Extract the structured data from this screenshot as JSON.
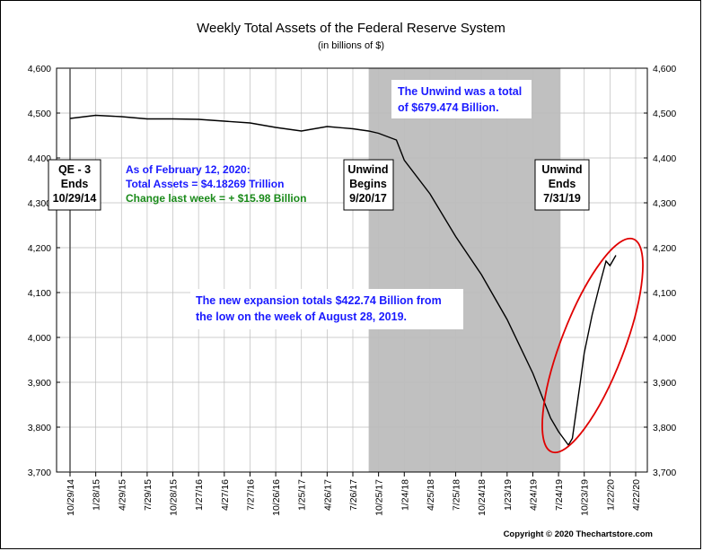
{
  "chart_data": {
    "type": "line",
    "title": "Weekly Total Assets of the Federal Reserve System",
    "subtitle": "(in billions of $)",
    "ylim": [
      3700,
      4600
    ],
    "y_ticks": [
      "4,600",
      "4,500",
      "4,400",
      "4,300",
      "4,200",
      "4,100",
      "4,000",
      "3,900",
      "3,800",
      "3,700"
    ],
    "y_tick_values": [
      4600,
      4500,
      4400,
      4300,
      4200,
      4100,
      4000,
      3900,
      3800,
      3700
    ],
    "x_ticks": [
      "10/29/14",
      "1/28/15",
      "4/29/15",
      "7/29/15",
      "10/28/15",
      "1/27/16",
      "4/27/16",
      "7/27/16",
      "10/26/16",
      "1/25/17",
      "4/26/17",
      "7/26/17",
      "10/25/17",
      "1/24/18",
      "4/25/18",
      "7/25/18",
      "10/24/18",
      "1/23/19",
      "4/24/19",
      "7/24/19",
      "10/23/19",
      "1/22/20",
      "4/22/20"
    ],
    "grid": true,
    "shaded_region": {
      "start": "9/20/17",
      "end": "7/31/19",
      "color": "#c0c0c0"
    },
    "series": [
      {
        "color": "#000000",
        "points": [
          [
            "10/29/14",
            4488
          ],
          [
            "1/28/15",
            4495
          ],
          [
            "4/29/15",
            4492
          ],
          [
            "7/29/15",
            4487
          ],
          [
            "10/28/15",
            4487
          ],
          [
            "1/27/16",
            4486
          ],
          [
            "4/27/16",
            4482
          ],
          [
            "7/27/16",
            4478
          ],
          [
            "10/26/16",
            4468
          ],
          [
            "1/25/17",
            4460
          ],
          [
            "4/26/17",
            4470
          ],
          [
            "7/26/17",
            4465
          ],
          [
            "9/20/17",
            4460
          ],
          [
            "10/25/17",
            4455
          ],
          [
            "12/27/17",
            4440
          ],
          [
            "1/24/18",
            4395
          ],
          [
            "4/25/18",
            4320
          ],
          [
            "7/25/18",
            4225
          ],
          [
            "10/24/18",
            4140
          ],
          [
            "1/23/19",
            4040
          ],
          [
            "4/24/19",
            3920
          ],
          [
            "6/26/19",
            3820
          ],
          [
            "7/24/19",
            3790
          ],
          [
            "8/28/19",
            3760
          ],
          [
            "9/11/19",
            3775
          ],
          [
            "10/9/19",
            3900
          ],
          [
            "10/23/19",
            3965
          ],
          [
            "11/20/19",
            4050
          ],
          [
            "12/18/19",
            4120
          ],
          [
            "1/8/20",
            4170
          ],
          [
            "1/22/20",
            4160
          ],
          [
            "2/12/20",
            4183
          ]
        ]
      }
    ],
    "annotations": {
      "qe3_line1": "QE - 3",
      "qe3_line2": "Ends",
      "qe3_line3": "10/29/14",
      "status_line1": "As of February 12, 2020:",
      "status_line2": "Total Assets = $4.18269 Trillion",
      "status_line3": "Change last week = + $15.98 Billion",
      "unwind_begin_line1": "Unwind",
      "unwind_begin_line2": "Begins",
      "unwind_begin_line3": "9/20/17",
      "unwind_end_line1": "Unwind",
      "unwind_end_line2": "Ends",
      "unwind_end_line3": "7/31/19",
      "unwind_total_line1": "The Unwind was a total",
      "unwind_total_line2": "of $679.474 Billion.",
      "expansion_line1": "The new expansion totals $422.74 Billion from",
      "expansion_line2": "the low on the week of August 28, 2019."
    },
    "colors": {
      "annotation_blue": "#1a1aff",
      "annotation_green": "#1a8a1a",
      "highlight_ellipse": "#e00000"
    },
    "copyright": "Copyright © 2020 Thechartstore.com"
  }
}
